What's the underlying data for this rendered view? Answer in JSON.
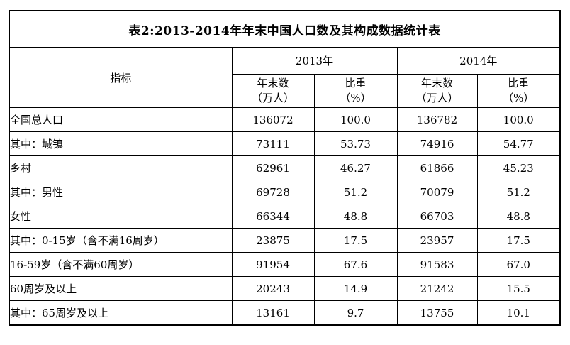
{
  "chart_data": {
    "type": "table",
    "title": "表2:2013-2014年年末中国人口数及其构成数据统计表",
    "header": {
      "indicator": "指标",
      "years": [
        "2013年",
        "2014年"
      ],
      "measures": [
        {
          "line1": "年末数",
          "line2": "（万人）"
        },
        {
          "line1": "比重",
          "line2": "（%）"
        },
        {
          "line1": "年末数",
          "line2": "（万人）"
        },
        {
          "line1": "比重",
          "line2": "（%）"
        }
      ]
    },
    "rows": [
      {
        "label": "全国总人口",
        "indent": 0,
        "values": [
          "136072",
          "100.0",
          "136782",
          "100.0"
        ]
      },
      {
        "label": "其中：城镇",
        "indent": 1,
        "values": [
          "73111",
          "53.73",
          "74916",
          "54.77"
        ]
      },
      {
        "label": "乡村",
        "indent": 2,
        "values": [
          "62961",
          "46.27",
          "61866",
          "45.23"
        ]
      },
      {
        "label": "其中：男性",
        "indent": 1,
        "values": [
          "69728",
          "51.2",
          "70079",
          "51.2"
        ]
      },
      {
        "label": "女性",
        "indent": 2,
        "values": [
          "66344",
          "48.8",
          "66703",
          "48.8"
        ]
      },
      {
        "label": "其中：0-15岁（含不满16周岁）",
        "indent": 1,
        "values": [
          "23875",
          "17.5",
          "23957",
          "17.5"
        ]
      },
      {
        "label": "16-59岁（含不满60周岁）",
        "indent": 2,
        "values": [
          "91954",
          "67.6",
          "91583",
          "67.0"
        ]
      },
      {
        "label": "60周岁及以上",
        "indent": 2,
        "values": [
          "20243",
          "14.9",
          "21242",
          "15.5"
        ]
      },
      {
        "label": "其中：65周岁及以上",
        "indent": 3,
        "values": [
          "13161",
          "9.7",
          "13755",
          "10.1"
        ]
      }
    ],
    "colors": {
      "border": "#000000",
      "text": "#000000",
      "background": "#ffffff"
    }
  }
}
